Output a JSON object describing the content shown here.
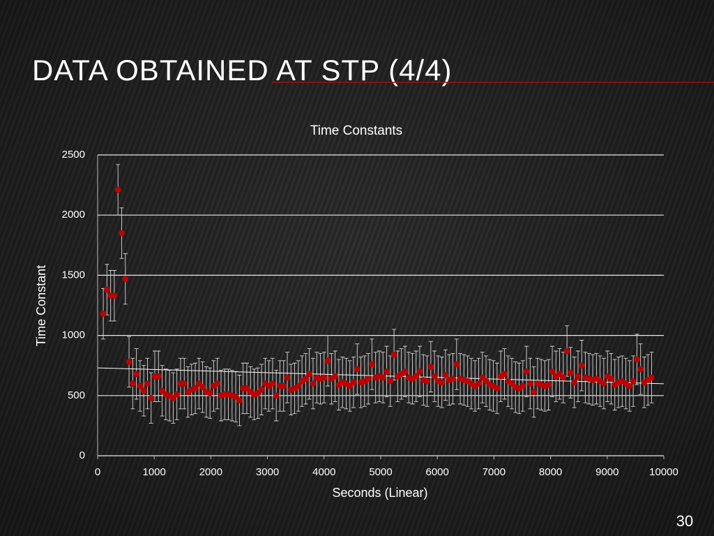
{
  "slide": {
    "title": "DATA OBTAINED AT STP (4/4)",
    "page_number": "30"
  },
  "chart_data": {
    "type": "scatter",
    "title": "Time Constants",
    "x_label": "Seconds (Linear)",
    "y_label": "Time Constant",
    "xlim": [
      0,
      10000
    ],
    "xticks": [
      0,
      1000,
      2000,
      3000,
      4000,
      5000,
      6000,
      7000,
      8000,
      9000,
      10000
    ],
    "ylim": [
      0,
      2500
    ],
    "yticks": [
      0,
      500,
      1000,
      1500,
      2000,
      2500
    ],
    "grid": true,
    "trendline": {
      "x": [
        0,
        10000
      ],
      "values": [
        730,
        598
      ],
      "color": "#ffffff"
    },
    "series": [
      {
        "color": "#c00000",
        "error": 210,
        "x": [
          100,
          165,
          230,
          295,
          360,
          425,
          490,
          555,
          620,
          685,
          750,
          815,
          880,
          945,
          1010,
          1075,
          1140,
          1205,
          1270,
          1335,
          1400,
          1465,
          1530,
          1595,
          1660,
          1725,
          1790,
          1855,
          1920,
          1985,
          2050,
          2115,
          2180,
          2245,
          2310,
          2375,
          2440,
          2505,
          2570,
          2635,
          2700,
          2765,
          2830,
          2895,
          2960,
          3025,
          3090,
          3155,
          3220,
          3285,
          3350,
          3415,
          3480,
          3545,
          3610,
          3675,
          3740,
          3805,
          3870,
          3935,
          4000,
          4065,
          4130,
          4195,
          4260,
          4325,
          4390,
          4455,
          4520,
          4585,
          4650,
          4715,
          4780,
          4845,
          4910,
          4975,
          5040,
          5105,
          5170,
          5235,
          5300,
          5365,
          5430,
          5495,
          5560,
          5625,
          5690,
          5755,
          5820,
          5885,
          5950,
          6015,
          6080,
          6145,
          6210,
          6275,
          6340,
          6405,
          6470,
          6535,
          6600,
          6665,
          6730,
          6795,
          6860,
          6925,
          6990,
          7055,
          7120,
          7185,
          7250,
          7315,
          7380,
          7445,
          7510,
          7575,
          7640,
          7705,
          7770,
          7835,
          7900,
          7965,
          8030,
          8095,
          8160,
          8225,
          8290,
          8355,
          8420,
          8485,
          8550,
          8615,
          8680,
          8745,
          8810,
          8875,
          8940,
          9005,
          9070,
          9135,
          9200,
          9265,
          9330,
          9395,
          9460,
          9525,
          9590,
          9655,
          9720,
          9785
        ],
        "values": [
          1180,
          1380,
          1330,
          1330,
          2210,
          1850,
          1470,
          780,
          600,
          680,
          580,
          540,
          600,
          480,
          660,
          660,
          540,
          510,
          500,
          480,
          510,
          600,
          600,
          530,
          550,
          560,
          600,
          570,
          530,
          520,
          580,
          600,
          500,
          510,
          510,
          500,
          490,
          460,
          560,
          560,
          530,
          510,
          520,
          550,
          600,
          580,
          600,
          500,
          580,
          580,
          650,
          550,
          560,
          580,
          620,
          640,
          680,
          600,
          650,
          640,
          650,
          790,
          640,
          660,
          590,
          610,
          600,
          580,
          610,
          720,
          610,
          620,
          640,
          760,
          650,
          660,
          650,
          700,
          620,
          840,
          660,
          680,
          700,
          650,
          640,
          660,
          700,
          630,
          620,
          740,
          660,
          620,
          610,
          670,
          630,
          640,
          760,
          640,
          630,
          620,
          600,
          580,
          600,
          650,
          620,
          590,
          580,
          560,
          660,
          680,
          620,
          600,
          570,
          560,
          580,
          700,
          600,
          530,
          600,
          590,
          580,
          590,
          700,
          660,
          680,
          650,
          870,
          690,
          610,
          660,
          750,
          650,
          640,
          630,
          640,
          620,
          600,
          660,
          640,
          590,
          610,
          620,
          600,
          580,
          620,
          800,
          720,
          610,
          630,
          650
        ]
      }
    ]
  }
}
